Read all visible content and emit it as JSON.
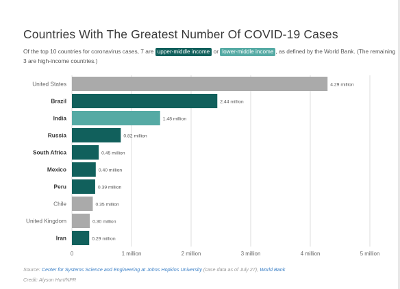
{
  "title": "Countries With The Greatest Number Of COVID-19 Cases",
  "subtitle": {
    "part1": "Of the top 10 countries for coronavirus cases, 7 are ",
    "tag_upper": "upper-middle income",
    "part2": " or ",
    "tag_lower": "lower-middle income",
    "part3": ", as defined by the World Bank. (The remaining 3 are high-income countries.)"
  },
  "colors": {
    "upper_middle": "#11605c",
    "lower_middle": "#55aaa4",
    "high": "#aaaaaa"
  },
  "chart_data": {
    "type": "bar",
    "orientation": "horizontal",
    "categories": [
      "United States",
      "Brazil",
      "India",
      "Russia",
      "South Africa",
      "Mexico",
      "Peru",
      "Chile",
      "United Kingdom",
      "Iran"
    ],
    "values": [
      4.29,
      2.44,
      1.48,
      0.82,
      0.45,
      0.4,
      0.39,
      0.35,
      0.3,
      0.29
    ],
    "value_labels": [
      "4.29 million",
      "2.44 million",
      "1.48 million",
      "0.82 million",
      "0.45 million",
      "0.40 million",
      "0.39 million",
      "0.35 million",
      "0.30 million",
      "0.29 million"
    ],
    "income_group": [
      "high",
      "upper_middle",
      "lower_middle",
      "upper_middle",
      "upper_middle",
      "upper_middle",
      "upper_middle",
      "high",
      "high",
      "upper_middle"
    ],
    "bold_category": [
      false,
      true,
      true,
      true,
      true,
      true,
      true,
      false,
      false,
      true
    ],
    "xlim": [
      0,
      5
    ],
    "xticks": [
      0,
      1,
      2,
      3,
      4,
      5
    ],
    "xtick_labels": [
      "0",
      "1 million",
      "2 million",
      "3 million",
      "4 million",
      "5 million"
    ],
    "grid": true
  },
  "source": {
    "prefix": "Source: ",
    "link1": "Center for Systems Science and Engineering at Johns Hopkins University",
    "middle": " (case data as of July 27), ",
    "link2": "World Bank"
  },
  "credit": "Credit: Alyson Hurt/NPR"
}
